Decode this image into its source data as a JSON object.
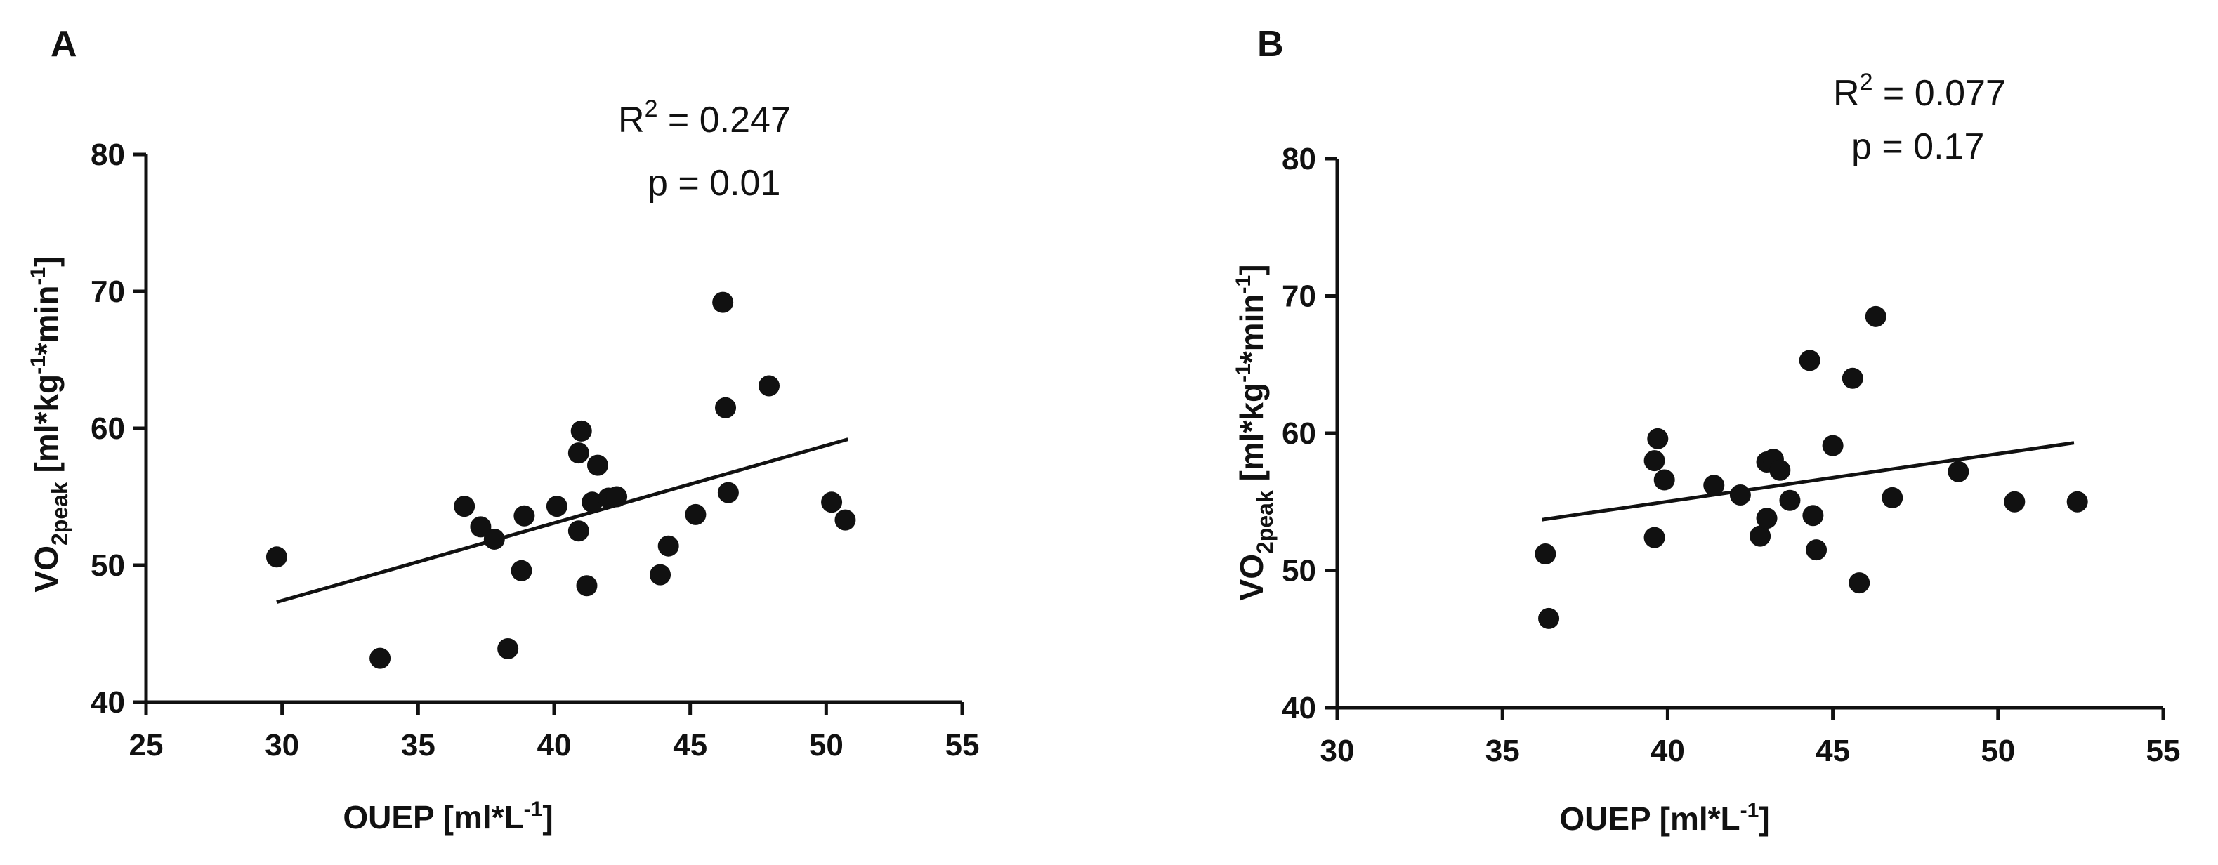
{
  "chart_data": [
    {
      "type": "scatter",
      "panel_label": "A",
      "xlabel_main": "OUEP [ml*L",
      "xlabel_sup": "-1",
      "xlabel_end": "]",
      "ylabel_main": "VO",
      "ylabel_sub": "2peak",
      "ylabel_rest_1": " [ml*kg",
      "ylabel_sup_1": "-1",
      "ylabel_rest_2": "*min",
      "ylabel_sup_2": "-1",
      "ylabel_end": "]",
      "xlim": [
        25,
        55
      ],
      "ylim": [
        40,
        80
      ],
      "x_ticks": [
        25,
        30,
        35,
        40,
        45,
        50,
        55
      ],
      "y_ticks": [
        40,
        50,
        60,
        70,
        80
      ],
      "x_tick_labels": [
        "25",
        "30",
        "35",
        "40",
        "45",
        "50",
        "55"
      ],
      "y_tick_labels": [
        "40",
        "50",
        "60",
        "70",
        "80"
      ],
      "stats": {
        "r2_prefix": "R",
        "r2_sup": "2",
        "r2_value": " = 0.247",
        "p_text": "p = 0.01"
      },
      "trendline": {
        "x": [
          29.8,
          50.8
        ],
        "y": [
          47.3,
          59.2
        ]
      },
      "points": [
        {
          "x": 29.8,
          "y": 50.6
        },
        {
          "x": 33.6,
          "y": 43.2
        },
        {
          "x": 36.7,
          "y": 54.3
        },
        {
          "x": 37.3,
          "y": 52.8
        },
        {
          "x": 37.8,
          "y": 51.9
        },
        {
          "x": 38.3,
          "y": 43.9
        },
        {
          "x": 38.8,
          "y": 49.6
        },
        {
          "x": 38.9,
          "y": 53.6
        },
        {
          "x": 40.1,
          "y": 54.3
        },
        {
          "x": 40.9,
          "y": 52.5
        },
        {
          "x": 40.9,
          "y": 58.2
        },
        {
          "x": 41.0,
          "y": 59.8
        },
        {
          "x": 41.2,
          "y": 48.5
        },
        {
          "x": 41.4,
          "y": 54.6
        },
        {
          "x": 41.6,
          "y": 57.3
        },
        {
          "x": 42.0,
          "y": 54.9
        },
        {
          "x": 42.3,
          "y": 55.0
        },
        {
          "x": 43.9,
          "y": 49.3
        },
        {
          "x": 44.2,
          "y": 51.4
        },
        {
          "x": 45.2,
          "y": 53.7
        },
        {
          "x": 46.2,
          "y": 69.2
        },
        {
          "x": 46.3,
          "y": 61.5
        },
        {
          "x": 46.4,
          "y": 55.3
        },
        {
          "x": 47.9,
          "y": 63.1
        },
        {
          "x": 50.2,
          "y": 54.6
        },
        {
          "x": 50.7,
          "y": 53.3
        }
      ]
    },
    {
      "type": "scatter",
      "panel_label": "B",
      "xlabel_main": "OUEP [ml*L",
      "xlabel_sup": "-1",
      "xlabel_end": "]",
      "ylabel_main": "VO",
      "ylabel_sub": "2peak",
      "ylabel_rest_1": " [ml*kg",
      "ylabel_sup_1": "-1",
      "ylabel_rest_2": "*min",
      "ylabel_sup_2": "-1",
      "ylabel_end": "]",
      "xlim": [
        30,
        55
      ],
      "ylim": [
        40,
        80
      ],
      "x_ticks": [
        30,
        35,
        40,
        45,
        50,
        55
      ],
      "y_ticks": [
        40,
        50,
        60,
        70,
        80
      ],
      "x_tick_labels": [
        "30",
        "35",
        "40",
        "45",
        "50",
        "55"
      ],
      "y_tick_labels": [
        "40",
        "50",
        "60",
        "70",
        "80"
      ],
      "stats": {
        "r2_prefix": "R",
        "r2_sup": "2",
        "r2_value": " = 0.077",
        "p_text": "p = 0.17"
      },
      "trendline": {
        "x": [
          36.2,
          52.3
        ],
        "y": [
          53.7,
          59.3
        ]
      },
      "points": [
        {
          "x": 36.3,
          "y": 51.2
        },
        {
          "x": 36.4,
          "y": 46.5
        },
        {
          "x": 39.6,
          "y": 52.4
        },
        {
          "x": 39.6,
          "y": 58.0
        },
        {
          "x": 39.7,
          "y": 59.6
        },
        {
          "x": 39.9,
          "y": 56.6
        },
        {
          "x": 41.4,
          "y": 56.2
        },
        {
          "x": 42.2,
          "y": 55.5
        },
        {
          "x": 42.8,
          "y": 52.5
        },
        {
          "x": 43.0,
          "y": 53.8
        },
        {
          "x": 43.0,
          "y": 57.9
        },
        {
          "x": 43.2,
          "y": 58.1
        },
        {
          "x": 43.4,
          "y": 57.3
        },
        {
          "x": 43.7,
          "y": 55.1
        },
        {
          "x": 44.3,
          "y": 65.3
        },
        {
          "x": 44.4,
          "y": 54.0
        },
        {
          "x": 44.5,
          "y": 51.5
        },
        {
          "x": 45.0,
          "y": 59.1
        },
        {
          "x": 45.6,
          "y": 64.0
        },
        {
          "x": 45.8,
          "y": 49.1
        },
        {
          "x": 46.3,
          "y": 68.5
        },
        {
          "x": 46.8,
          "y": 55.3
        },
        {
          "x": 48.8,
          "y": 57.2
        },
        {
          "x": 50.5,
          "y": 55.0
        },
        {
          "x": 52.4,
          "y": 55.0
        }
      ]
    }
  ]
}
